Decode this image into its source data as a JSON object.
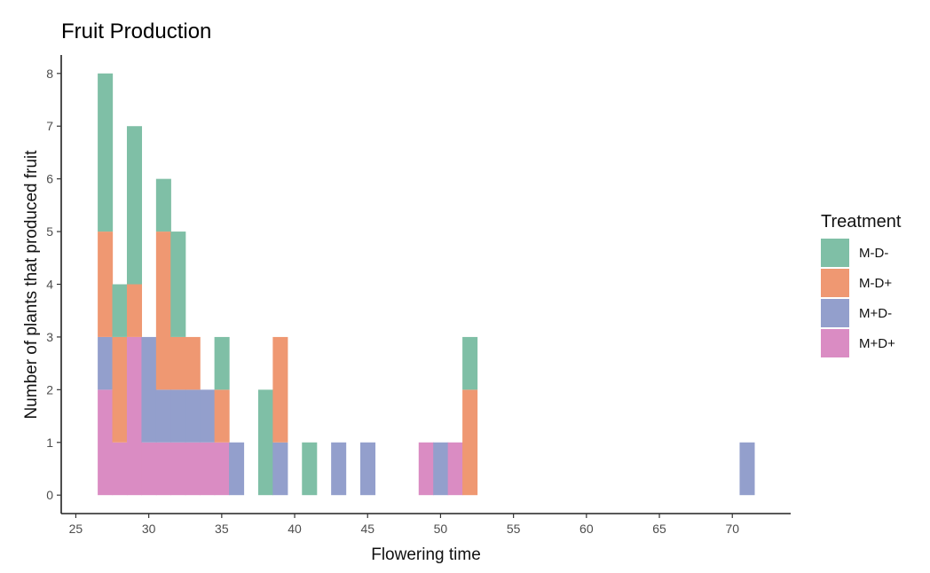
{
  "chart_data": {
    "type": "histogram (stacked bar)",
    "title": "Fruit Production",
    "xlabel": "Flowering time",
    "ylabel": "Number of plants that produced fruit",
    "xlim": [
      24,
      74
    ],
    "ylim": [
      -0.35,
      8.35
    ],
    "x_ticks": [
      25,
      30,
      35,
      40,
      45,
      50,
      55,
      60,
      65,
      70
    ],
    "y_ticks": [
      0,
      1,
      2,
      3,
      4,
      5,
      6,
      7,
      8
    ],
    "bin_width": 1,
    "grid": false,
    "legend_position": "right",
    "legend_title": "Treatment",
    "series": [
      {
        "name": "M-D-",
        "color": "#7fbfa6",
        "bins": [
          {
            "x": 27,
            "count": 3
          },
          {
            "x": 28,
            "count": 1
          },
          {
            "x": 29,
            "count": 3
          },
          {
            "x": 31,
            "count": 1
          },
          {
            "x": 32,
            "count": 2
          },
          {
            "x": 35,
            "count": 1
          },
          {
            "x": 38,
            "count": 2
          },
          {
            "x": 41,
            "count": 1
          },
          {
            "x": 52,
            "count": 1
          }
        ]
      },
      {
        "name": "M-D+",
        "color": "#ef9872",
        "bins": [
          {
            "x": 27,
            "count": 2
          },
          {
            "x": 28,
            "count": 2
          },
          {
            "x": 29,
            "count": 1
          },
          {
            "x": 31,
            "count": 3
          },
          {
            "x": 32,
            "count": 1
          },
          {
            "x": 33,
            "count": 1
          },
          {
            "x": 35,
            "count": 1
          },
          {
            "x": 39,
            "count": 2
          },
          {
            "x": 52,
            "count": 2
          }
        ]
      },
      {
        "name": "M+D-",
        "color": "#939fcc",
        "bins": [
          {
            "x": 27,
            "count": 1
          },
          {
            "x": 30,
            "count": 2
          },
          {
            "x": 31,
            "count": 1
          },
          {
            "x": 32,
            "count": 1
          },
          {
            "x": 33,
            "count": 1
          },
          {
            "x": 34,
            "count": 1
          },
          {
            "x": 36,
            "count": 1
          },
          {
            "x": 39,
            "count": 1
          },
          {
            "x": 43,
            "count": 1
          },
          {
            "x": 45,
            "count": 1
          },
          {
            "x": 50,
            "count": 1
          },
          {
            "x": 71,
            "count": 1
          }
        ]
      },
      {
        "name": "M+D+",
        "color": "#da8cc3",
        "bins": [
          {
            "x": 27,
            "count": 2
          },
          {
            "x": 28,
            "count": 1
          },
          {
            "x": 29,
            "count": 3
          },
          {
            "x": 30,
            "count": 1
          },
          {
            "x": 31,
            "count": 1
          },
          {
            "x": 32,
            "count": 1
          },
          {
            "x": 33,
            "count": 1
          },
          {
            "x": 34,
            "count": 1
          },
          {
            "x": 35,
            "count": 1
          },
          {
            "x": 49,
            "count": 1
          },
          {
            "x": 51,
            "count": 1
          }
        ]
      }
    ]
  }
}
